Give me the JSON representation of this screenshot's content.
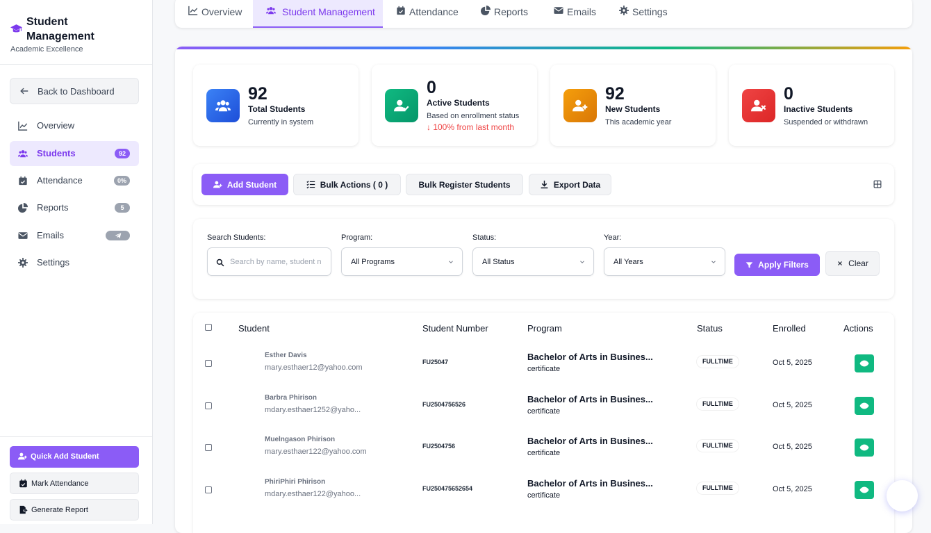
{
  "sidebar": {
    "title": "Student Management",
    "subtitle": "Academic Excellence",
    "back": "Back to Dashboard",
    "nav": [
      {
        "label": "Overview"
      },
      {
        "label": "Students",
        "badge": "92"
      },
      {
        "label": "Attendance",
        "badge": "0%"
      },
      {
        "label": "Reports",
        "badge": "5"
      },
      {
        "label": "Emails"
      },
      {
        "label": "Settings"
      }
    ],
    "quick_actions": [
      "Quick Add Student",
      "Mark Attendance",
      "Generate Report"
    ]
  },
  "tabs": [
    "Overview",
    "Student Management",
    "Attendance",
    "Reports",
    "Emails",
    "Settings"
  ],
  "stats": [
    {
      "value": 92,
      "label": "Total Students",
      "note": "Currently in system"
    },
    {
      "value": 0,
      "label": "Active Students",
      "note": "Based on enrollment status",
      "trend": "↓ 100% from last month"
    },
    {
      "value": 92,
      "label": "New Students",
      "note": "This academic year"
    },
    {
      "value": 0,
      "label": "Inactive Students",
      "note": "Suspended or withdrawn"
    }
  ],
  "toolbar": [
    "Add Student",
    "Bulk Actions ( 0 )",
    "Bulk Register Students",
    "Export Data"
  ],
  "filters": {
    "fields": [
      {
        "label": "Search Students:",
        "placeholder": "Search by name, student n"
      },
      {
        "label": "Program:",
        "value": "All Programs"
      },
      {
        "label": "Status:",
        "value": "All Status"
      },
      {
        "label": "Year:",
        "value": "All Years"
      }
    ],
    "apply": "Apply Filters",
    "clear": "Clear"
  },
  "table": {
    "headers": [
      "Student",
      "Student Number",
      "Program",
      "Status",
      "Enrolled",
      "Actions"
    ],
    "rows": [
      {
        "name": "Esther Davis",
        "email": "mary.esthaer12@yahoo.com",
        "number": "FU25047",
        "program": "Bachelor of Arts in Busines...",
        "type": "certificate",
        "status": "FULLTIME",
        "enrolled": "Oct 5, 2025"
      },
      {
        "name": "Barbra Phirison",
        "email": "mdary.esthaer1252@yaho...",
        "number": "FU2504756526",
        "program": "Bachelor of Arts in Busines...",
        "type": "certificate",
        "status": "FULLTIME",
        "enrolled": "Oct 5, 2025"
      },
      {
        "name": "Muelngason Phirison",
        "email": "mary.esthaer122@yahoo.com",
        "number": "FU2504756",
        "program": "Bachelor of Arts in Busines...",
        "type": "certificate",
        "status": "FULLTIME",
        "enrolled": "Oct 5, 2025"
      },
      {
        "name": "PhiriPhiri Phirison",
        "email": "mdary.esthaer122@yahoo...",
        "number": "FU250475652654",
        "program": "Bachelor of Arts in Busines...",
        "type": "certificate",
        "status": "FULLTIME",
        "enrolled": "Oct 5, 2025"
      }
    ]
  }
}
